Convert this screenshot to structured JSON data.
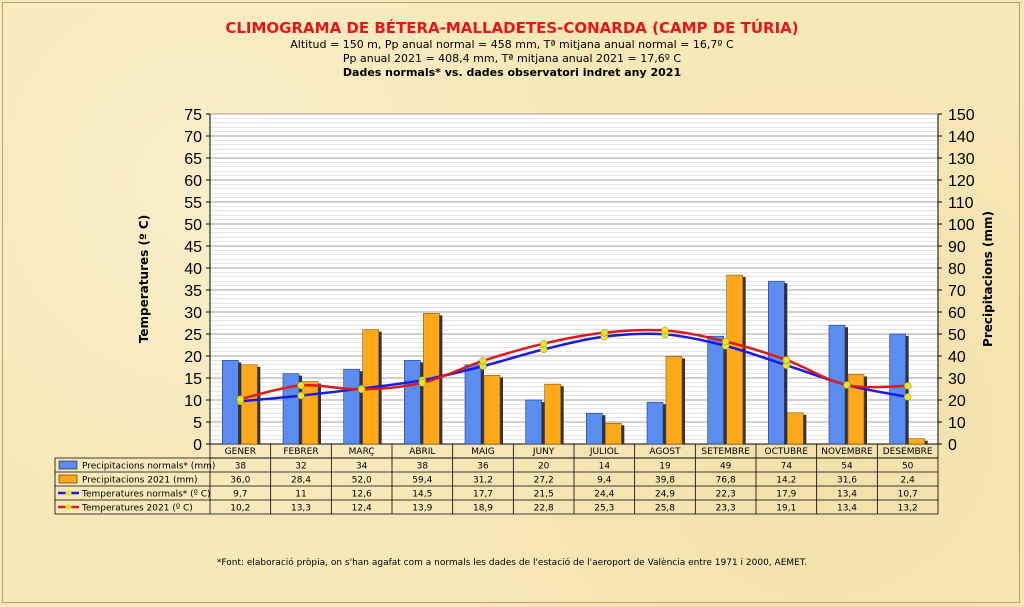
{
  "title": "CLIMOGRAMA DE BÉTERA-MALLADETES-CONARDA (CAMP DE TÚRIA)",
  "subtitle1": "Altitud = 150 m, Pp anual normal = 458 mm, Tª mitjana anual normal = 16,7º C",
  "subtitle2": "Pp anual 2021 = 408,4 mm, Tª mitjana anual 2021 = 17,6º C",
  "subtitle3": "Dades normals* vs. dades observatori indret any 2021",
  "footnote": "*Font: elaboració pròpia, on s'han agafat com a normals les dades de l'estació de l'aeroport de València entre 1971 i 2000, AEMET.",
  "colors": {
    "precip_normal": "#5b8cf0",
    "precip_2021": "#ffa81a",
    "temp_normal": "#1a1ae6",
    "temp_2021": "#e01a1a",
    "marker": "#e6e632"
  },
  "chart_data": {
    "type": "bar+line",
    "categories": [
      "GENER",
      "FEBRER",
      "MARÇ",
      "ABRIL",
      "MAIG",
      "JUNY",
      "JULIOL",
      "AGOST",
      "SETEMBRE",
      "OCTUBRE",
      "NOVEMBRE",
      "DESEMBRE"
    ],
    "ylabel_left": "Temperatures  (º C)",
    "ylabel_right": "Precipitacions  (mm)",
    "ylim_left": [
      0,
      75
    ],
    "ylim_right": [
      0,
      150
    ],
    "yticks_left": [
      "0",
      "5",
      "10",
      "15",
      "20",
      "25",
      "30",
      "35",
      "40",
      "45",
      "50",
      "55",
      "60",
      "65",
      "70",
      "75"
    ],
    "yticks_right": [
      "0",
      "10",
      "20",
      "30",
      "40",
      "50",
      "60",
      "70",
      "80",
      "90",
      "100",
      "110",
      "120",
      "130",
      "140",
      "150"
    ],
    "grid": true,
    "series": [
      {
        "name": "Precipitacions normals* (mm)",
        "kind": "bar",
        "axis": "right",
        "values": [
          38,
          32,
          34,
          38,
          36,
          20,
          14,
          19,
          49,
          74,
          54,
          50
        ],
        "labels": [
          "38",
          "32",
          "34",
          "38",
          "36",
          "20",
          "14",
          "19",
          "49",
          "74",
          "54",
          "50"
        ]
      },
      {
        "name": "Precipitacions 2021 (mm)",
        "kind": "bar",
        "axis": "right",
        "values": [
          36.0,
          28.4,
          52.0,
          59.4,
          31.2,
          27.2,
          9.4,
          39.8,
          76.8,
          14.2,
          31.6,
          2.4
        ],
        "labels": [
          "36,0",
          "28,4",
          "52,0",
          "59,4",
          "31,2",
          "27,2",
          "9,4",
          "39,8",
          "76,8",
          "14,2",
          "31,6",
          "2,4"
        ]
      },
      {
        "name": "Temperatures normals* (º C)",
        "kind": "line",
        "axis": "left",
        "values": [
          9.7,
          11,
          12.6,
          14.5,
          17.7,
          21.5,
          24.4,
          24.9,
          22.3,
          17.9,
          13.4,
          10.7
        ],
        "labels": [
          "9,7",
          "11",
          "12,6",
          "14,5",
          "17,7",
          "21,5",
          "24,4",
          "24,9",
          "22,3",
          "17,9",
          "13,4",
          "10,7"
        ]
      },
      {
        "name": "Temperatures 2021 (º C)",
        "kind": "line",
        "axis": "left",
        "values": [
          10.2,
          13.3,
          12.4,
          13.9,
          18.9,
          22.8,
          25.3,
          25.8,
          23.3,
          19.1,
          13.4,
          13.2
        ],
        "labels": [
          "10,2",
          "13,3",
          "12,4",
          "13,9",
          "18,9",
          "22,8",
          "25,3",
          "25,8",
          "23,3",
          "19,1",
          "13,4",
          "13,2"
        ]
      }
    ]
  }
}
